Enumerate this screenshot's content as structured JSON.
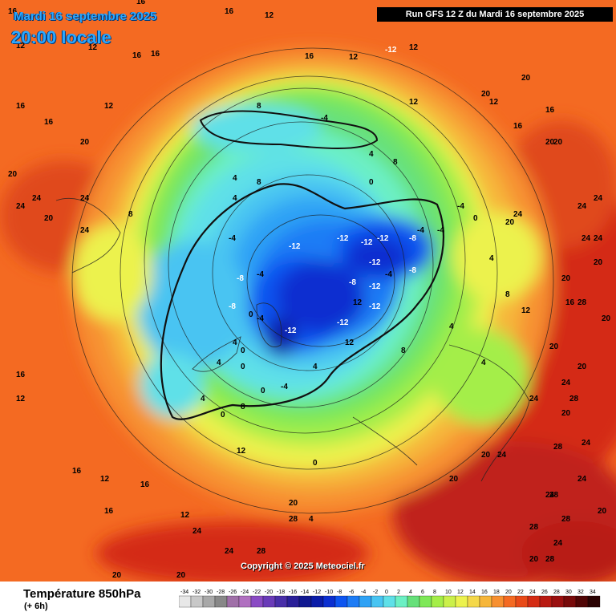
{
  "header": {
    "date_line": "Mardi 16 septembre 2025",
    "time_line": "20:00 locale",
    "run_line": "Run GFS 12 Z du Mardi 16 septembre 2025"
  },
  "map": {
    "copyright": "Copyright © 2025 Meteociel.fr",
    "labels": [
      {
        "t": "16"
      },
      {
        "t": "16"
      },
      {
        "t": "12"
      },
      {
        "t": "16"
      },
      {
        "t": "12"
      },
      {
        "t": "12"
      },
      {
        "t": "16"
      },
      {
        "t": "16"
      },
      {
        "t": "12"
      },
      {
        "t": "12"
      },
      {
        "t": "16"
      },
      {
        "t": "20"
      },
      {
        "t": "20"
      },
      {
        "t": "24"
      },
      {
        "t": "24"
      },
      {
        "t": "24"
      },
      {
        "t": "20"
      },
      {
        "t": "24"
      },
      {
        "t": "12"
      },
      {
        "t": "16"
      },
      {
        "t": "16"
      },
      {
        "t": "8"
      },
      {
        "t": "12"
      },
      {
        "t": "12"
      },
      {
        "t": "8"
      },
      {
        "t": "4"
      },
      {
        "t": "-4"
      },
      {
        "t": "4"
      },
      {
        "t": "0"
      },
      {
        "t": "8"
      },
      {
        "t": "4"
      },
      {
        "t": "-4"
      },
      {
        "t": "-8"
      },
      {
        "t": "-12"
      },
      {
        "t": "-12"
      },
      {
        "t": "-12"
      },
      {
        "t": "-12"
      },
      {
        "t": "-12"
      },
      {
        "t": "-8"
      },
      {
        "t": "-8"
      },
      {
        "t": "-12"
      },
      {
        "t": "-12"
      },
      {
        "t": "-12"
      },
      {
        "t": "-4"
      },
      {
        "t": "-8"
      },
      {
        "t": "-4"
      },
      {
        "t": "0"
      },
      {
        "t": "0"
      },
      {
        "t": "-4"
      },
      {
        "t": "4"
      },
      {
        "t": "8"
      },
      {
        "t": "4"
      },
      {
        "t": "4"
      },
      {
        "t": "0"
      },
      {
        "t": "-4"
      },
      {
        "t": "-4"
      },
      {
        "t": "0"
      },
      {
        "t": "4"
      },
      {
        "t": "8"
      },
      {
        "t": "4"
      },
      {
        "t": "4"
      },
      {
        "t": "8"
      },
      {
        "t": "12"
      },
      {
        "t": "12"
      },
      {
        "t": "16"
      },
      {
        "t": "20"
      },
      {
        "t": "20"
      },
      {
        "t": "20"
      },
      {
        "t": "20"
      },
      {
        "t": "24"
      },
      {
        "t": "20"
      },
      {
        "t": "24"
      },
      {
        "t": "28"
      },
      {
        "t": "24"
      },
      {
        "t": "20"
      },
      {
        "t": "24"
      },
      {
        "t": "28"
      },
      {
        "t": "24"
      },
      {
        "t": "20"
      },
      {
        "t": "28"
      },
      {
        "t": "24"
      },
      {
        "t": "20"
      },
      {
        "t": "24"
      },
      {
        "t": "28"
      },
      {
        "t": "20"
      },
      {
        "t": "28"
      },
      {
        "t": "24"
      },
      {
        "t": "28"
      },
      {
        "t": "24"
      },
      {
        "t": "20"
      },
      {
        "t": "20"
      },
      {
        "t": "16"
      },
      {
        "t": "16"
      },
      {
        "t": "12"
      },
      {
        "t": "16"
      },
      {
        "t": "12"
      },
      {
        "t": "12"
      },
      {
        "t": "16"
      },
      {
        "t": "16"
      },
      {
        "t": "16"
      },
      {
        "t": "20"
      },
      {
        "t": "24"
      },
      {
        "t": "24"
      },
      {
        "t": "24"
      },
      {
        "t": "20"
      },
      {
        "t": "24"
      },
      {
        "t": "28"
      },
      {
        "t": "24"
      },
      {
        "t": "20"
      },
      {
        "t": "12"
      },
      {
        "t": "4"
      },
      {
        "t": "0"
      },
      {
        "t": "-4"
      },
      {
        "t": "0"
      },
      {
        "t": "0"
      },
      {
        "t": "4"
      },
      {
        "t": "8"
      },
      {
        "t": "-12"
      },
      {
        "t": "-8"
      },
      {
        "t": "-4"
      },
      {
        "t": "-12"
      },
      {
        "t": "12"
      },
      {
        "t": "20"
      },
      {
        "t": "20"
      },
      {
        "t": "20"
      },
      {
        "t": "28"
      },
      {
        "t": "28"
      },
      {
        "t": "20"
      }
    ]
  },
  "legend": {
    "variable": "Température 850hPa",
    "lead": "(+ 6h)",
    "ticks": [
      "-34",
      "-32",
      "-30",
      "-28",
      "-26",
      "-24",
      "-22",
      "-20",
      "-18",
      "-16",
      "-14",
      "-12",
      "-10",
      "-8",
      "-6",
      "-4",
      "-2",
      "0",
      "2",
      "4",
      "6",
      "8",
      "10",
      "12",
      "14",
      "16",
      "18",
      "20",
      "22",
      "24",
      "26",
      "28",
      "30",
      "32",
      "34"
    ],
    "colors": [
      "#e8e8e8",
      "#c8c8c8",
      "#a8a8a8",
      "#888888",
      "#a070a8",
      "#b070c0",
      "#8a4bc4",
      "#6a3bb8",
      "#482ea8",
      "#2a1f98",
      "#101890",
      "#0a1ca8",
      "#0b2fd0",
      "#0d55f0",
      "#1d7cf5",
      "#2fa2f5",
      "#48c4f2",
      "#5fe0e8",
      "#6cf0c4",
      "#66e07a",
      "#7ee858",
      "#a4ee48",
      "#cbf04a",
      "#ecf24e",
      "#f4d84a",
      "#f6b63a",
      "#f79030",
      "#f46a22",
      "#e84a18",
      "#d42c14",
      "#b81a12",
      "#9a1010",
      "#780a0a",
      "#500505",
      "#2a0202"
    ]
  }
}
